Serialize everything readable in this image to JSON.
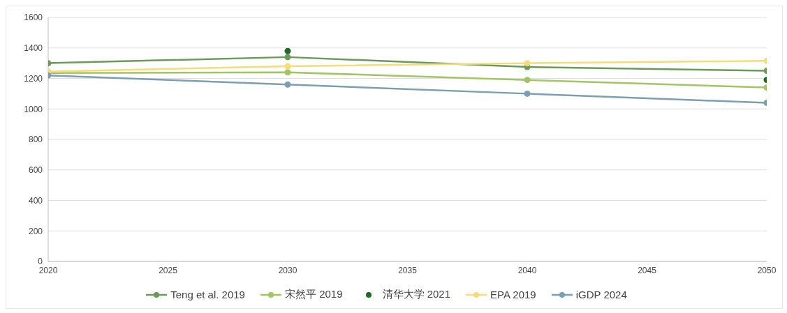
{
  "chart_data": {
    "type": "line",
    "x": [
      2020,
      2030,
      2040,
      2050
    ],
    "xlim": [
      2020,
      2050
    ],
    "xticks": [
      2020,
      2025,
      2030,
      2035,
      2040,
      2045,
      2050
    ],
    "ylim": [
      0,
      1600
    ],
    "yticks": [
      0,
      200,
      400,
      600,
      800,
      1000,
      1200,
      1400,
      1600
    ],
    "grid": "y",
    "legend": "bottom",
    "marker": "circle",
    "series": [
      {
        "name": "Teng et al. 2019",
        "color": "#6a9a58",
        "values": [
          1300,
          1340,
          1275,
          1250
        ]
      },
      {
        "name": "宋然平 2019",
        "color": "#a3c465",
        "values": [
          1235,
          1240,
          1190,
          1140
        ]
      },
      {
        "name": "清华大学 2021",
        "type": "scatter",
        "color": "#1e6b24",
        "values": [
          null,
          1380,
          null,
          1190
        ]
      },
      {
        "name": "EPA 2019",
        "color": "#f4dc7a",
        "values": [
          1245,
          1280,
          1300,
          1315
        ]
      },
      {
        "name": "iGDP 2024",
        "color": "#7a9fb2",
        "values": [
          1220,
          1160,
          1100,
          1040
        ]
      }
    ]
  }
}
